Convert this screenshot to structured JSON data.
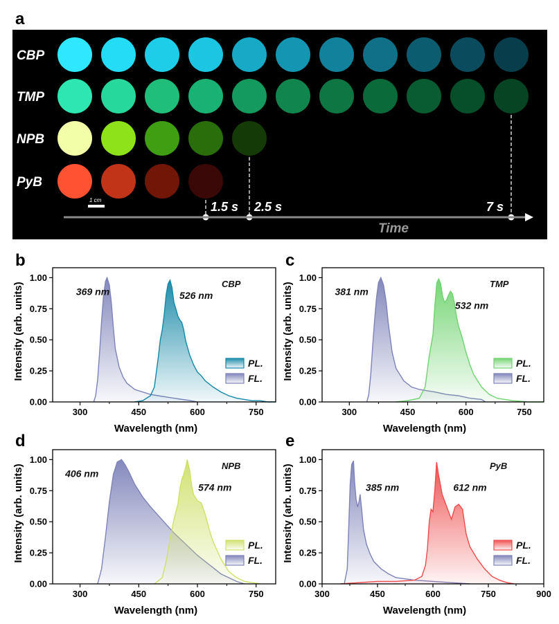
{
  "panel_a": {
    "letter": "a",
    "rows": [
      {
        "label": "CBP",
        "colors": [
          "#2fe8ff",
          "#24dcf6",
          "#1ecde8",
          "#1cc6e2",
          "#17a9c6",
          "#1496b2",
          "#12829c",
          "#0f7088",
          "#0c5c70",
          "#0a4c5e",
          "#083d4c"
        ]
      },
      {
        "label": "TMP",
        "colors": [
          "#2ee6b2",
          "#26d89c",
          "#1fbe7a",
          "#1ab274",
          "#149a5e",
          "#10864e",
          "#0d7642",
          "#0b6a3a",
          "#095c32",
          "#074f2a",
          "#064424"
        ]
      },
      {
        "label": "NPB",
        "colors": [
          "#f2ffa8",
          "#8ee21a",
          "#3f9e12",
          "#2a6e0c",
          "#143a08"
        ]
      },
      {
        "label": "PyB",
        "colors": [
          "#ff5232",
          "#c23418",
          "#721608",
          "#3a0806"
        ]
      }
    ],
    "scale_bar": "1 cm",
    "time_marks": [
      {
        "label": "1.5 s",
        "row": 3,
        "column": 4
      },
      {
        "label": "2.5 s",
        "row": 2,
        "column": 5
      },
      {
        "label": "7 s",
        "row": 1,
        "column": 11
      }
    ],
    "time_axis_label": "Time"
  },
  "chart_data": [
    {
      "panel": "b",
      "type": "area",
      "name": "CBP",
      "xlabel": "Wavelength (nm)",
      "ylabel": "Intensity (arb. units)",
      "xlim": [
        230,
        800
      ],
      "ylim": [
        0,
        1.08
      ],
      "xticks": [
        300,
        450,
        600,
        750
      ],
      "yticks": [
        0.0,
        0.25,
        0.5,
        0.75,
        1.0
      ],
      "annotations": [
        {
          "text": "369 nm",
          "x": 290,
          "y": 0.86
        },
        {
          "text": "526 nm",
          "x": 554,
          "y": 0.83
        }
      ],
      "legend": [
        "PL.",
        "FL."
      ],
      "series": [
        {
          "name": "PL.",
          "color": "#1487a6",
          "x": [
            440,
            460,
            480,
            490,
            500,
            505,
            510,
            515,
            520,
            525,
            530,
            535,
            540,
            545,
            550,
            555,
            560,
            565,
            570,
            580,
            590,
            600,
            610,
            620,
            640,
            660,
            680,
            700,
            720,
            740,
            760,
            780,
            800
          ],
          "y": [
            0.0,
            0.01,
            0.05,
            0.12,
            0.36,
            0.5,
            0.58,
            0.7,
            0.86,
            0.95,
            0.98,
            0.92,
            0.8,
            0.75,
            0.69,
            0.66,
            0.64,
            0.58,
            0.49,
            0.38,
            0.3,
            0.24,
            0.21,
            0.17,
            0.12,
            0.08,
            0.05,
            0.03,
            0.02,
            0.01,
            0.01,
            0.0,
            0.0
          ]
        },
        {
          "name": "FL.",
          "color": "#7d82b8",
          "x": [
            335,
            340,
            345,
            350,
            355,
            360,
            365,
            369,
            375,
            380,
            385,
            390,
            400,
            410,
            420,
            440,
            460,
            480,
            500,
            520,
            550,
            580,
            600
          ],
          "y": [
            0.0,
            0.05,
            0.18,
            0.4,
            0.65,
            0.85,
            0.97,
            1.0,
            0.94,
            0.8,
            0.6,
            0.43,
            0.28,
            0.2,
            0.15,
            0.1,
            0.08,
            0.06,
            0.05,
            0.04,
            0.025,
            0.012,
            0.0
          ]
        }
      ]
    },
    {
      "panel": "c",
      "type": "area",
      "name": "TMP",
      "xlabel": "Wavelength (nm)",
      "ylabel": "Intensity (arb. units)",
      "xlim": [
        230,
        800
      ],
      "ylim": [
        0,
        1.08
      ],
      "xticks": [
        300,
        450,
        600,
        750
      ],
      "yticks": [
        0.0,
        0.25,
        0.5,
        0.75,
        1.0
      ],
      "annotations": [
        {
          "text": "381 nm",
          "x": 263,
          "y": 0.86
        },
        {
          "text": "532 nm",
          "x": 572,
          "y": 0.75
        }
      ],
      "legend": [
        "PL.",
        "FL."
      ],
      "series": [
        {
          "name": "PL.",
          "color": "#6fd36f",
          "x": [
            420,
            450,
            480,
            495,
            505,
            510,
            515,
            520,
            525,
            530,
            535,
            540,
            545,
            550,
            555,
            560,
            565,
            570,
            575,
            580,
            590,
            600,
            610,
            620,
            640,
            660,
            680,
            700,
            720,
            740,
            760,
            780,
            800
          ],
          "y": [
            0.0,
            0.01,
            0.03,
            0.12,
            0.36,
            0.45,
            0.54,
            0.78,
            0.96,
            0.99,
            0.95,
            0.85,
            0.8,
            0.82,
            0.86,
            0.89,
            0.87,
            0.8,
            0.7,
            0.62,
            0.52,
            0.4,
            0.3,
            0.22,
            0.12,
            0.06,
            0.03,
            0.02,
            0.01,
            0.005,
            0.0,
            0.0,
            0.0
          ]
        },
        {
          "name": "FL.",
          "color": "#7d82b8",
          "x": [
            345,
            350,
            355,
            360,
            365,
            370,
            375,
            381,
            388,
            395,
            400,
            410,
            420,
            440,
            460,
            480,
            500,
            520,
            550,
            580,
            610,
            640,
            650
          ],
          "y": [
            0.0,
            0.06,
            0.22,
            0.45,
            0.66,
            0.84,
            0.96,
            1.0,
            0.94,
            0.8,
            0.64,
            0.4,
            0.27,
            0.17,
            0.12,
            0.1,
            0.09,
            0.08,
            0.06,
            0.05,
            0.03,
            0.02,
            0.0
          ]
        }
      ]
    },
    {
      "panel": "d",
      "type": "area",
      "name": "NPB",
      "xlabel": "Wavelength (nm)",
      "ylabel": "Intensity (arb. units)",
      "xlim": [
        230,
        800
      ],
      "ylim": [
        0,
        1.08
      ],
      "xticks": [
        300,
        450,
        600,
        750
      ],
      "yticks": [
        0.0,
        0.25,
        0.5,
        0.75,
        1.0
      ],
      "annotations": [
        {
          "text": "406 nm",
          "x": 262,
          "y": 0.86
        },
        {
          "text": "574 nm",
          "x": 602,
          "y": 0.75
        }
      ],
      "legend": [
        "PL.",
        "FL."
      ],
      "series": [
        {
          "name": "PL.",
          "color": "#cfe06a",
          "x": [
            490,
            510,
            520,
            530,
            540,
            550,
            555,
            560,
            565,
            570,
            574,
            580,
            585,
            590,
            600,
            610,
            620,
            630,
            640,
            650,
            660,
            680,
            700,
            720,
            740,
            760
          ],
          "y": [
            0.0,
            0.05,
            0.18,
            0.36,
            0.52,
            0.64,
            0.76,
            0.84,
            0.88,
            0.94,
            1.0,
            0.92,
            0.8,
            0.72,
            0.67,
            0.65,
            0.56,
            0.44,
            0.34,
            0.27,
            0.2,
            0.1,
            0.05,
            0.02,
            0.01,
            0.0
          ]
        },
        {
          "name": "FL.",
          "color": "#7d82b8",
          "x": [
            345,
            355,
            365,
            375,
            385,
            395,
            406,
            415,
            425,
            440,
            460,
            480,
            500,
            520,
            540,
            560,
            580,
            600,
            620,
            640,
            660,
            680,
            700,
            720
          ],
          "y": [
            0.0,
            0.12,
            0.38,
            0.66,
            0.88,
            0.98,
            1.0,
            0.96,
            0.9,
            0.8,
            0.7,
            0.62,
            0.55,
            0.48,
            0.41,
            0.35,
            0.29,
            0.23,
            0.18,
            0.13,
            0.08,
            0.05,
            0.02,
            0.0
          ]
        }
      ]
    },
    {
      "panel": "e",
      "type": "area",
      "name": "PyB",
      "xlabel": "Wavelength (nm)",
      "ylabel": "Intensity (arb. units)",
      "xlim": [
        300,
        900
      ],
      "ylim": [
        0,
        1.08
      ],
      "xticks": [
        300,
        450,
        600,
        750,
        900
      ],
      "yticks": [
        0.0,
        0.25,
        0.5,
        0.75,
        1.0
      ],
      "annotations": [
        {
          "text": "385 nm",
          "x": 418,
          "y": 0.75
        },
        {
          "text": "612 nm",
          "x": 655,
          "y": 0.75
        }
      ],
      "legend": [
        "PL.",
        "FL."
      ],
      "series": [
        {
          "name": "PL.",
          "color": "#ee4b4b",
          "x": [
            350,
            400,
            450,
            500,
            550,
            570,
            580,
            585,
            590,
            595,
            600,
            605,
            610,
            615,
            620,
            625,
            630,
            640,
            650,
            660,
            670,
            680,
            690,
            700,
            720,
            740,
            760,
            780,
            800,
            820
          ],
          "y": [
            0.0,
            0.01,
            0.02,
            0.02,
            0.03,
            0.06,
            0.15,
            0.28,
            0.5,
            0.6,
            0.58,
            0.75,
            0.98,
            0.88,
            0.8,
            0.72,
            0.68,
            0.6,
            0.52,
            0.62,
            0.64,
            0.6,
            0.4,
            0.3,
            0.2,
            0.12,
            0.06,
            0.03,
            0.01,
            0.0
          ]
        },
        {
          "name": "FL.",
          "color": "#7d82b8",
          "x": [
            360,
            368,
            372,
            376,
            380,
            385,
            388,
            392,
            396,
            400,
            403,
            407,
            412,
            420,
            430,
            440,
            460,
            480,
            500,
            550,
            600,
            650,
            700
          ],
          "y": [
            0.0,
            0.12,
            0.45,
            0.8,
            0.96,
            0.99,
            0.82,
            0.68,
            0.62,
            0.66,
            0.72,
            0.6,
            0.44,
            0.32,
            0.24,
            0.18,
            0.12,
            0.08,
            0.05,
            0.03,
            0.02,
            0.01,
            0.0
          ]
        }
      ]
    }
  ]
}
